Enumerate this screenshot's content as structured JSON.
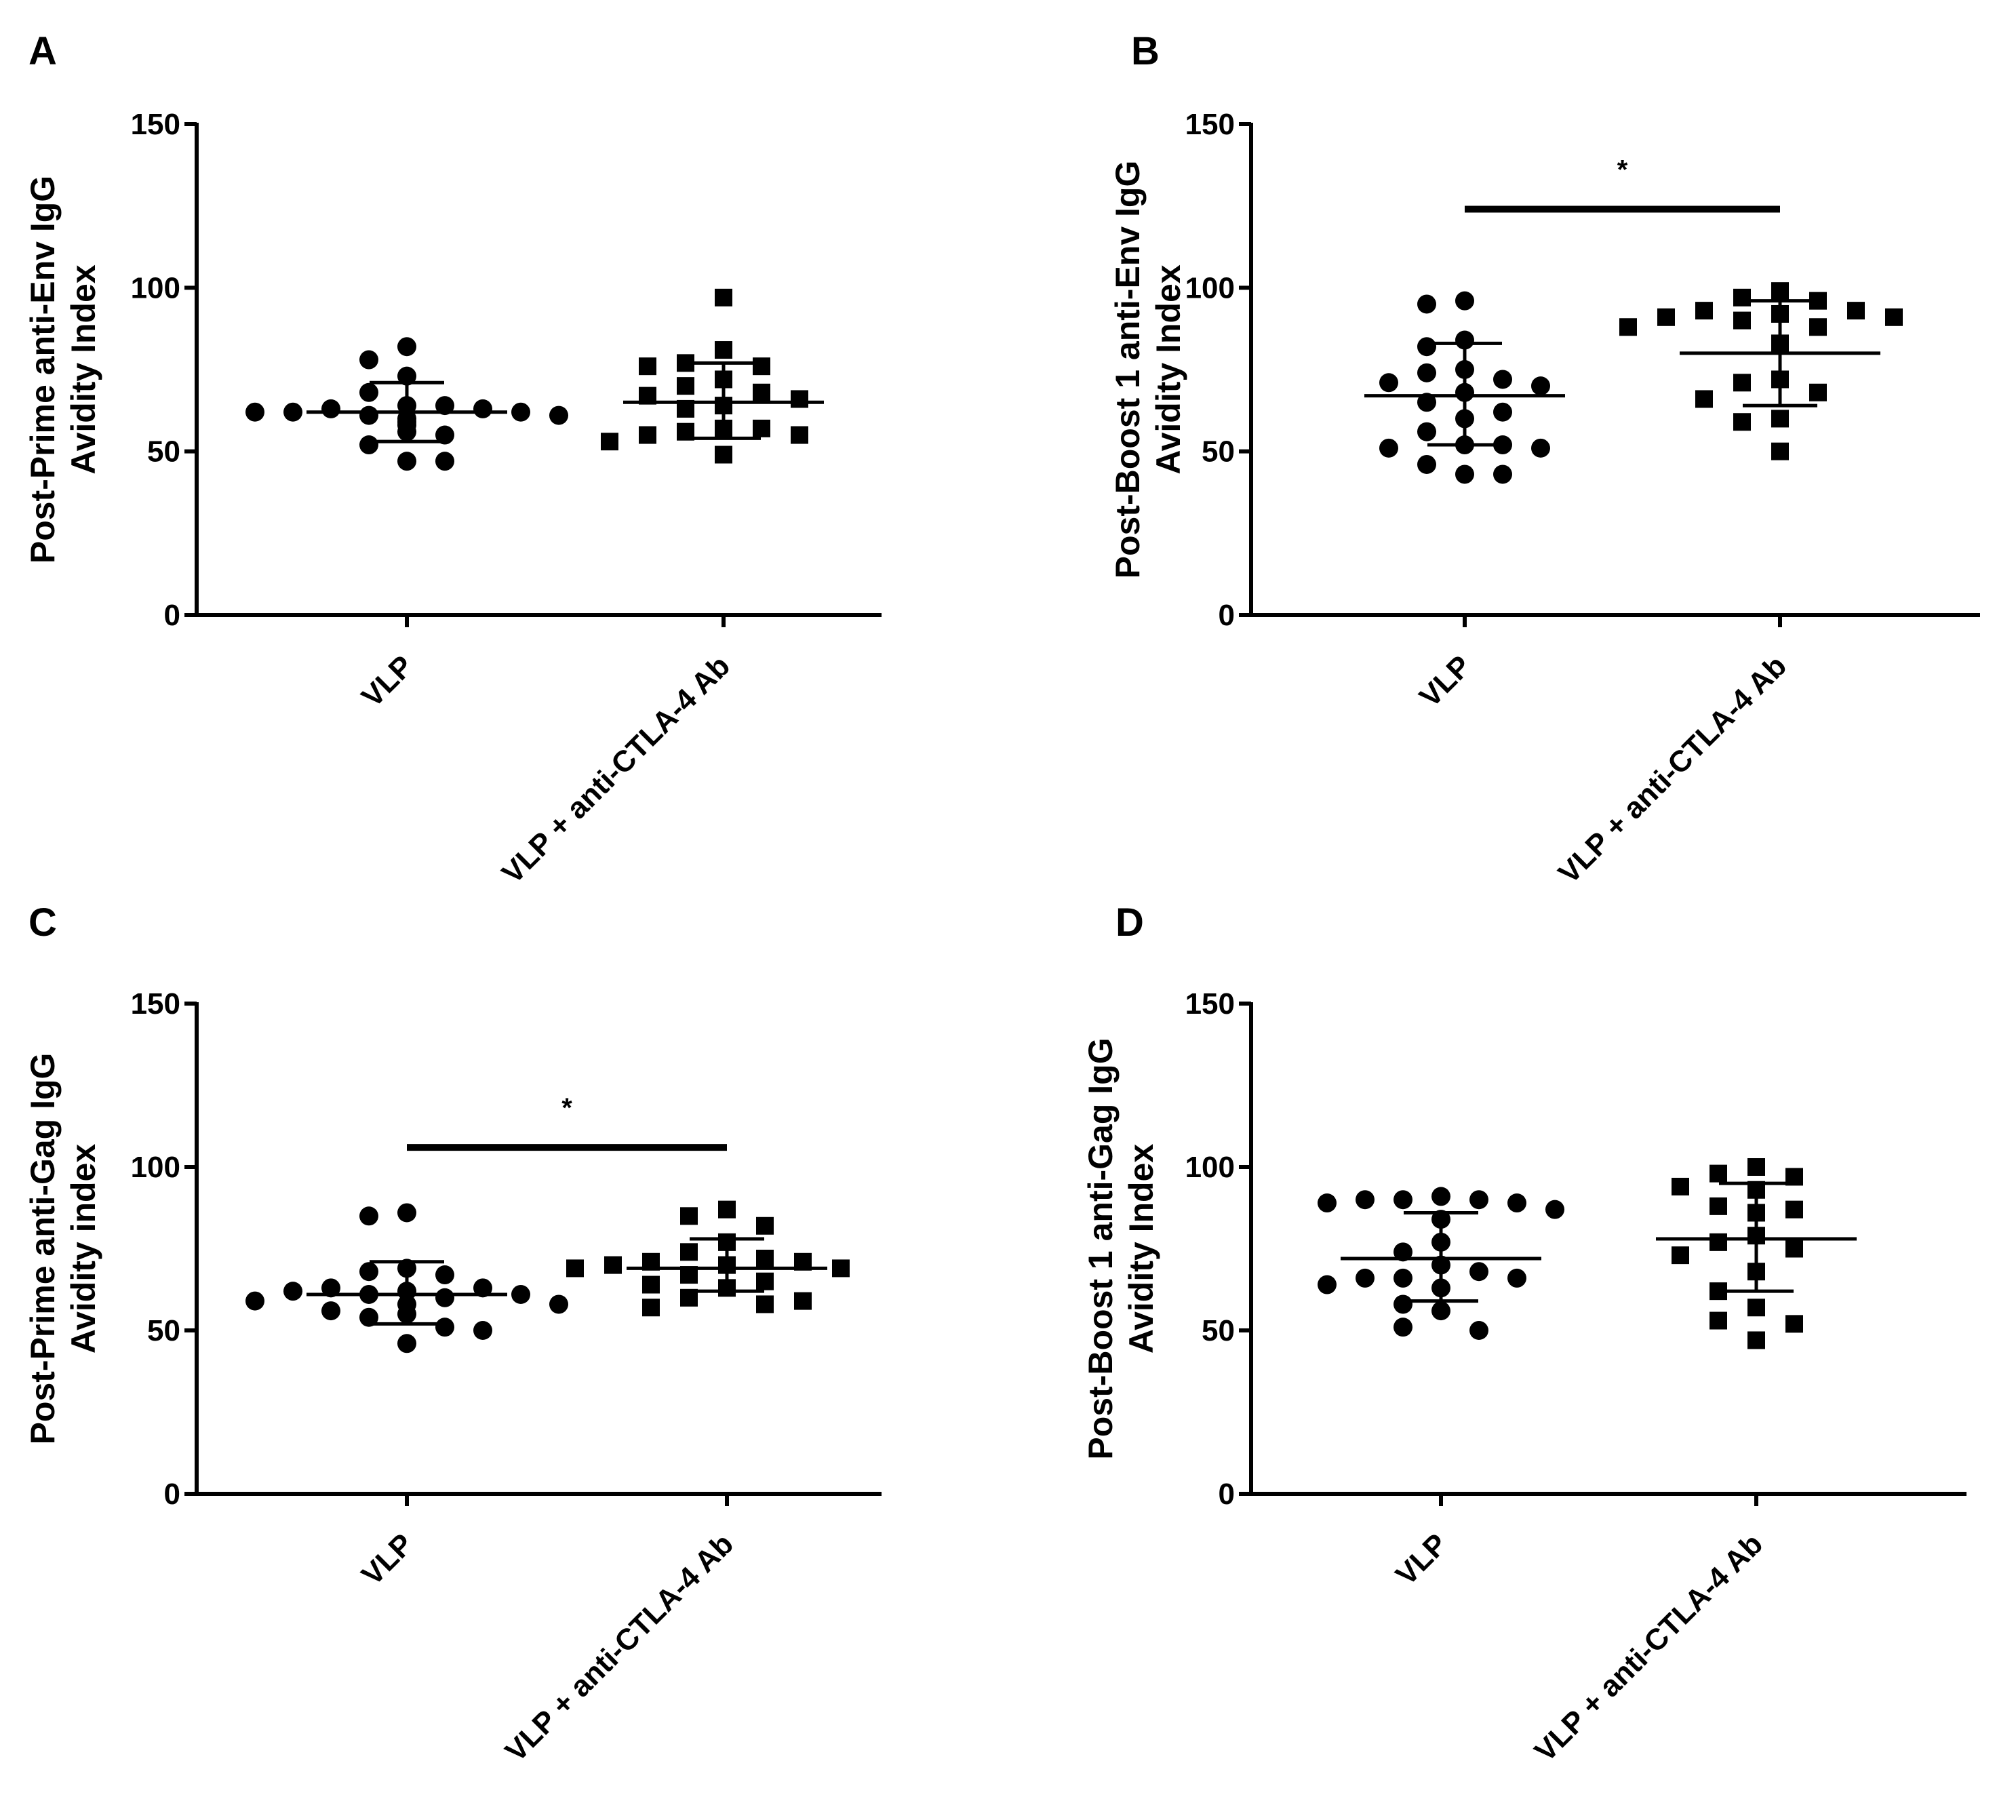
{
  "chart_data": [
    {
      "panel": "A",
      "type": "scatter",
      "ylabel": [
        "Post-Prime anti-Env IgG",
        "Avidity Index"
      ],
      "ylim": [
        0,
        150
      ],
      "yticks": [
        0,
        50,
        100,
        150
      ],
      "categories": [
        "VLP",
        "VLP + anti-CTLA-4 Ab"
      ],
      "series": [
        {
          "name": "VLP",
          "marker": "circle",
          "values": [
            82,
            78,
            73,
            68,
            64,
            64,
            63,
            63,
            62,
            62,
            62,
            61,
            61,
            60,
            59,
            58,
            56,
            55,
            52,
            47,
            47
          ],
          "mean": 62,
          "sd_low": 53,
          "sd_high": 71
        },
        {
          "name": "VLP + anti-CTLA-4 Ab",
          "marker": "square",
          "values": [
            97,
            81,
            77,
            76,
            76,
            72,
            70,
            68,
            67,
            66,
            64,
            63,
            57,
            57,
            56,
            55,
            55,
            53,
            49
          ],
          "mean": 65,
          "sd_low": 54,
          "sd_high": 77
        }
      ],
      "significance": null
    },
    {
      "panel": "B",
      "type": "scatter",
      "ylabel": [
        "Post-Boost 1 anti-Env IgG",
        "Avidity Index"
      ],
      "ylim": [
        0,
        150
      ],
      "yticks": [
        0,
        50,
        100,
        150
      ],
      "categories": [
        "VLP",
        "VLP + anti-CTLA-4 Ab"
      ],
      "series": [
        {
          "name": "VLP",
          "marker": "circle",
          "values": [
            96,
            95,
            84,
            82,
            75,
            74,
            72,
            71,
            70,
            68,
            65,
            62,
            60,
            56,
            52,
            52,
            51,
            51,
            46,
            43,
            43
          ],
          "mean": 67,
          "sd_low": 52,
          "sd_high": 83
        },
        {
          "name": "VLP + anti-CTLA-4 Ab",
          "marker": "square",
          "values": [
            99,
            97,
            96,
            93,
            93,
            92,
            91,
            91,
            90,
            88,
            88,
            83,
            72,
            71,
            68,
            66,
            60,
            59,
            50
          ],
          "mean": 80,
          "sd_low": 64,
          "sd_high": 96
        }
      ],
      "significance": {
        "label": "*",
        "y": 124
      }
    },
    {
      "panel": "C",
      "type": "scatter",
      "ylabel": [
        "Post-Prime anti-Gag IgG",
        "Avidity index"
      ],
      "ylim": [
        0,
        150
      ],
      "yticks": [
        0,
        50,
        100,
        150
      ],
      "categories": [
        "VLP",
        "VLP + anti-CTLA-4 Ab"
      ],
      "series": [
        {
          "name": "VLP",
          "marker": "circle",
          "values": [
            86,
            85,
            69,
            68,
            67,
            63,
            63,
            62,
            62,
            61,
            61,
            60,
            59,
            58,
            58,
            56,
            55,
            54,
            51,
            50,
            46
          ],
          "mean": 61,
          "sd_low": 52,
          "sd_high": 71
        },
        {
          "name": "VLP + anti-CTLA-4 Ab",
          "marker": "square",
          "values": [
            87,
            85,
            82,
            77,
            74,
            72,
            71,
            71,
            70,
            70,
            69,
            69,
            67,
            65,
            64,
            63,
            60,
            59,
            58,
            57
          ],
          "mean": 69,
          "sd_low": 62,
          "sd_high": 78
        }
      ],
      "significance": {
        "label": "*",
        "y": 106
      }
    },
    {
      "panel": "D",
      "type": "scatter",
      "ylabel": [
        "Post-Boost 1 anti-Gag IgG",
        "Avidity Index"
      ],
      "ylim": [
        0,
        150
      ],
      "yticks": [
        0,
        50,
        100,
        150
      ],
      "categories": [
        "VLP",
        "VLP + anti-CTLA-4 Ab"
      ],
      "series": [
        {
          "name": "VLP",
          "marker": "circle",
          "values": [
            91,
            90,
            90,
            90,
            89,
            89,
            87,
            84,
            77,
            74,
            70,
            68,
            66,
            66,
            66,
            64,
            63,
            58,
            56,
            51,
            50
          ],
          "mean": 72,
          "sd_low": 59,
          "sd_high": 86
        },
        {
          "name": "VLP + anti-CTLA-4 Ab",
          "marker": "square",
          "values": [
            100,
            98,
            97,
            94,
            93,
            88,
            87,
            86,
            79,
            77,
            75,
            73,
            68,
            62,
            57,
            53,
            52,
            47
          ],
          "mean": 78,
          "sd_low": 62,
          "sd_high": 95
        }
      ],
      "significance": null
    }
  ]
}
